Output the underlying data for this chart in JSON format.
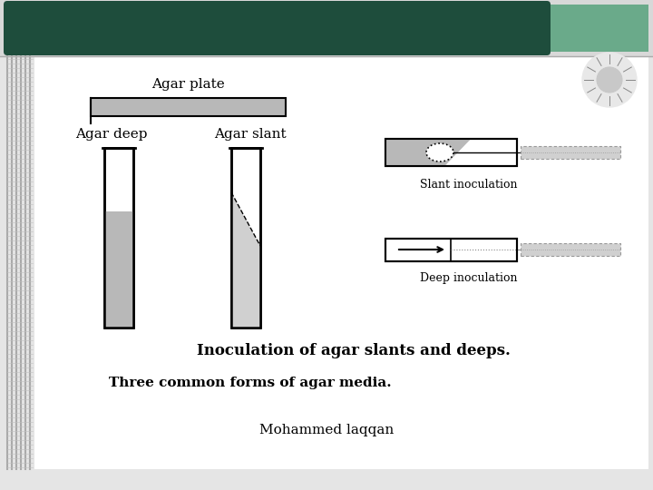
{
  "header_dark_color": "#1e4d3c",
  "header_light_color": "#6aaa8a",
  "bg_main": "#ffffff",
  "bg_outer": "#d8d8d8",
  "stripe_color": "#c8c8c8",
  "agar_gray": "#b8b8b8",
  "agar_light": "#d0d0d0",
  "title_text": "Inoculation of agar slants and deeps.",
  "subtitle_text": "Three common forms of agar media.",
  "footer_text": "Mohammed laqqan",
  "label_plate": "Agar plate",
  "label_deep": "Agar deep",
  "label_slant": "Agar slant",
  "label_slant_inoc": "Slant inoculation",
  "label_deep_inoc": "Deep inoculation"
}
